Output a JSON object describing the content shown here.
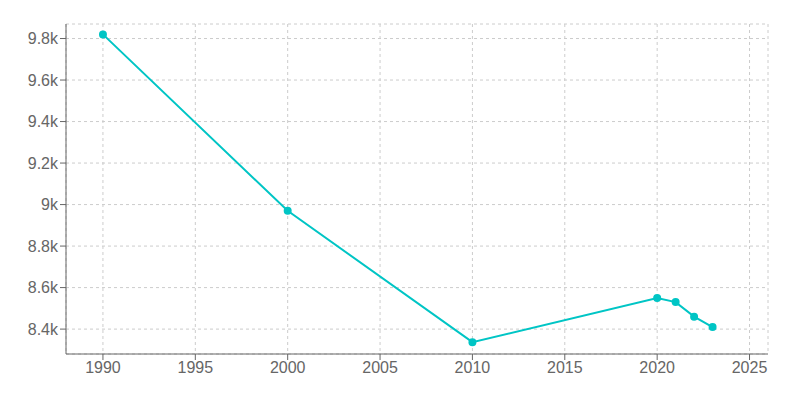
{
  "chart_data": {
    "type": "line",
    "x": [
      1990,
      2000,
      2010,
      2020,
      2021,
      2022,
      2023
    ],
    "values": [
      9820,
      8970,
      8337,
      8550,
      8530,
      8460,
      8410
    ],
    "color": "#00C5C5",
    "marker": "circle",
    "xlim": [
      1988,
      2026
    ],
    "ylim": [
      8280,
      9870
    ],
    "xticks": [
      1990,
      1995,
      2000,
      2005,
      2010,
      2015,
      2020,
      2025
    ],
    "yticks": [
      {
        "value": 8400,
        "label": "8.4k"
      },
      {
        "value": 8600,
        "label": "8.6k"
      },
      {
        "value": 8800,
        "label": "8.8k"
      },
      {
        "value": 9000,
        "label": "9k"
      },
      {
        "value": 9200,
        "label": "9.2k"
      },
      {
        "value": 9400,
        "label": "9.4k"
      },
      {
        "value": 9600,
        "label": "9.6k"
      },
      {
        "value": 9800,
        "label": "9.8k"
      }
    ],
    "grid": true
  }
}
